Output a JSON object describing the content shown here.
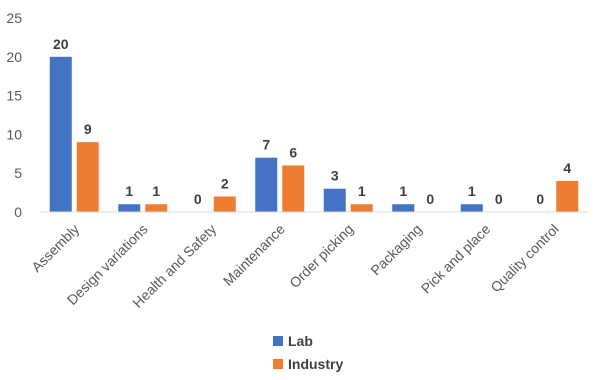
{
  "chart_data": {
    "type": "bar",
    "categories": [
      "Assembly",
      "Design variations",
      "Health and Safety",
      "Maintenance",
      "Order picking",
      "Packaging",
      "Pick and place",
      "Quality control"
    ],
    "series": [
      {
        "name": "Lab",
        "values": [
          20,
          1,
          0,
          7,
          3,
          1,
          1,
          0
        ],
        "color": "#4472C4"
      },
      {
        "name": "Industry",
        "values": [
          9,
          1,
          2,
          6,
          1,
          0,
          0,
          4
        ],
        "color": "#ED7D31"
      }
    ],
    "title": "",
    "xlabel": "",
    "ylabel": "",
    "ylim": [
      0,
      25
    ],
    "yticks": [
      0,
      5,
      10,
      15,
      20,
      25
    ],
    "grid": false,
    "legend_position": "bottom",
    "data_labels": true
  }
}
